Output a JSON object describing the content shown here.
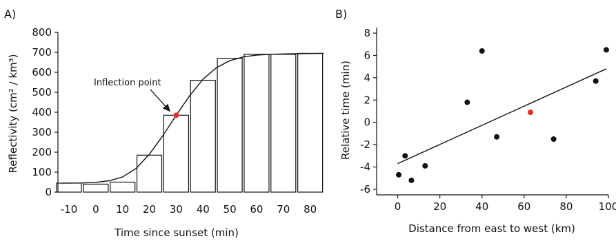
{
  "chart_data": [
    {
      "panel_label": "A)",
      "type": "bar",
      "categories": [
        "-10",
        "0",
        "10",
        "20",
        "30",
        "40",
        "50",
        "60",
        "70",
        "80"
      ],
      "x": [
        -10,
        0,
        10,
        20,
        30,
        40,
        50,
        60,
        70,
        80
      ],
      "values": [
        45,
        40,
        50,
        185,
        385,
        560,
        670,
        690,
        690,
        695
      ],
      "curve": {
        "type": "line",
        "x": [
          -13,
          -10,
          -5,
          0,
          5,
          10,
          15,
          20,
          25,
          30,
          35,
          40,
          45,
          50,
          55,
          60,
          65,
          70,
          75,
          85
        ],
        "y": [
          45,
          45,
          46,
          49,
          57,
          76,
          118,
          190,
          282,
          385,
          482,
          565,
          623,
          658,
          677,
          686,
          690,
          692,
          693,
          695
        ]
      },
      "annotation": {
        "text": "Inflection point",
        "x": 30,
        "y": 385,
        "color": "#e8302a"
      },
      "xlabel": "Time since sunset (min)",
      "ylabel": "Reflectivity (cm² / km³)",
      "ylim": [
        0,
        800
      ],
      "yticks": [
        0,
        100,
        200,
        300,
        400,
        500,
        600,
        700,
        800
      ],
      "grid": false
    },
    {
      "panel_label": "B)",
      "type": "scatter",
      "points": [
        {
          "x": 0.5,
          "y": -4.7,
          "color": "#111111"
        },
        {
          "x": 3.5,
          "y": -3.0,
          "color": "#111111"
        },
        {
          "x": 6.5,
          "y": -5.2,
          "color": "#111111"
        },
        {
          "x": 13,
          "y": -3.9,
          "color": "#111111"
        },
        {
          "x": 33,
          "y": 1.8,
          "color": "#111111"
        },
        {
          "x": 40,
          "y": 6.4,
          "color": "#111111"
        },
        {
          "x": 47,
          "y": -1.3,
          "color": "#111111"
        },
        {
          "x": 63,
          "y": 0.9,
          "color": "#e8302a"
        },
        {
          "x": 74,
          "y": -1.5,
          "color": "#111111"
        },
        {
          "x": 94,
          "y": 3.7,
          "color": "#111111"
        },
        {
          "x": 99,
          "y": 6.5,
          "color": "#111111"
        }
      ],
      "trendline": {
        "x": [
          0,
          99
        ],
        "y": [
          -3.7,
          4.8
        ]
      },
      "xlabel": "Distance from east to west (km)",
      "ylabel": "Relative time (min)",
      "xlim": [
        -10,
        100
      ],
      "ylim": [
        -6.5,
        8.5
      ],
      "xticks": [
        0,
        20,
        40,
        60,
        80,
        100
      ],
      "yticks": [
        -6,
        -4,
        -2,
        0,
        2,
        4,
        6,
        8
      ],
      "grid": false
    }
  ]
}
